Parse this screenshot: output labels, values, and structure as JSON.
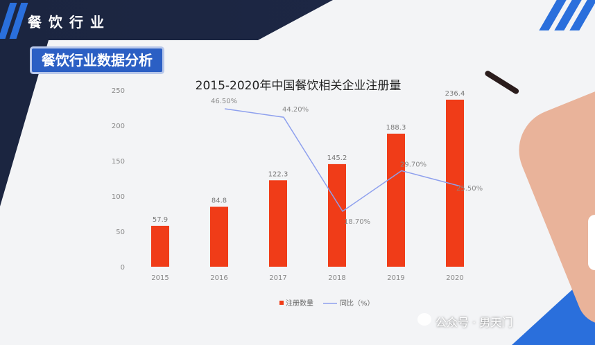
{
  "header": {
    "title": "餐饮行业"
  },
  "section": {
    "title": "餐饮行业数据分析"
  },
  "watermark": {
    "text": "公众号 · 男天门"
  },
  "colors": {
    "bar": "#f03c18",
    "line": "#8ea0ee",
    "header_dark": "#1b2540",
    "accent_blue": "#2a6fdc"
  },
  "chart_data": {
    "type": "bar",
    "title": "2015-2020年中国餐饮相关企业注册量",
    "categories": [
      "2015",
      "2016",
      "2017",
      "2018",
      "2019",
      "2020"
    ],
    "series": [
      {
        "name": "注册数量",
        "type": "bar",
        "values": [
          57.9,
          84.8,
          122.3,
          145.2,
          188.3,
          236.4
        ]
      },
      {
        "name": "同比（%）",
        "type": "line",
        "values": [
          null,
          46.5,
          44.2,
          18.7,
          29.7,
          25.5
        ]
      }
    ],
    "bar_labels": [
      "57.9",
      "84.8",
      "122.3",
      "145.2",
      "188.3",
      "236.4"
    ],
    "line_labels": [
      "",
      "46.50%",
      "44.20%",
      "18.70%",
      "29.70%",
      "25.50%"
    ],
    "yticks": [
      "0",
      "50",
      "100",
      "150",
      "200",
      "250"
    ],
    "ylim": [
      0,
      250
    ],
    "legend": "bottom-center",
    "grid": false
  }
}
